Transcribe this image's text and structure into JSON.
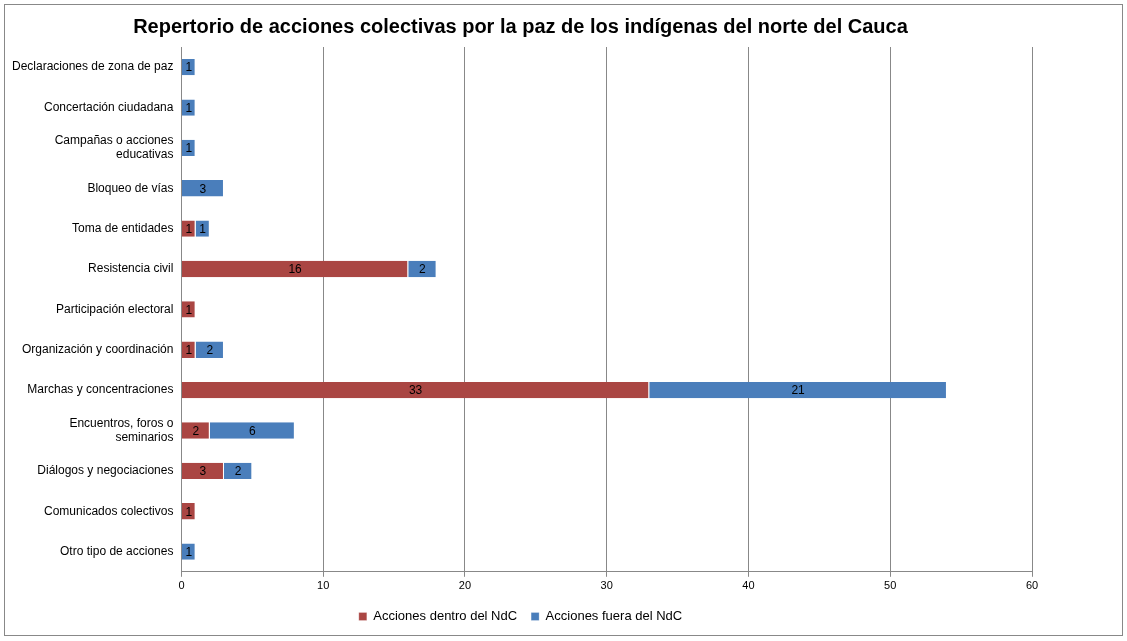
{
  "chart_data": {
    "type": "bar",
    "orientation": "horizontal",
    "stacked": true,
    "title": "Repertorio de acciones colectivas por la paz de los indígenas del norte del Cauca",
    "categories": [
      "Declaraciones de zona de paz",
      "Concertación ciudadana",
      "Campañas o acciones educativas",
      "Bloqueo de vías",
      "Toma de entidades",
      "Resistencia civil",
      "Participación electoral",
      "Organización y coordinación",
      "Marchas y concentraciones",
      "Encuentros, foros o seminarios",
      "Diálogos y negociaciones",
      "Comunicados colectivos",
      "Otro tipo de acciones"
    ],
    "series": [
      {
        "name": "Acciones dentro del NdC",
        "color": "#aa4643",
        "values": [
          null,
          null,
          null,
          null,
          1,
          16,
          1,
          1,
          33,
          2,
          3,
          1,
          null
        ]
      },
      {
        "name": "Acciones fuera del NdC",
        "color": "#4a7ebb",
        "values": [
          1,
          1,
          1,
          3,
          1,
          2,
          null,
          2,
          21,
          6,
          2,
          null,
          1
        ]
      }
    ],
    "xlim": [
      0,
      60
    ],
    "xticks": [
      0,
      10,
      20,
      30,
      40,
      50,
      60
    ],
    "grid": "x",
    "legend": "bottom",
    "data_labels": true
  }
}
